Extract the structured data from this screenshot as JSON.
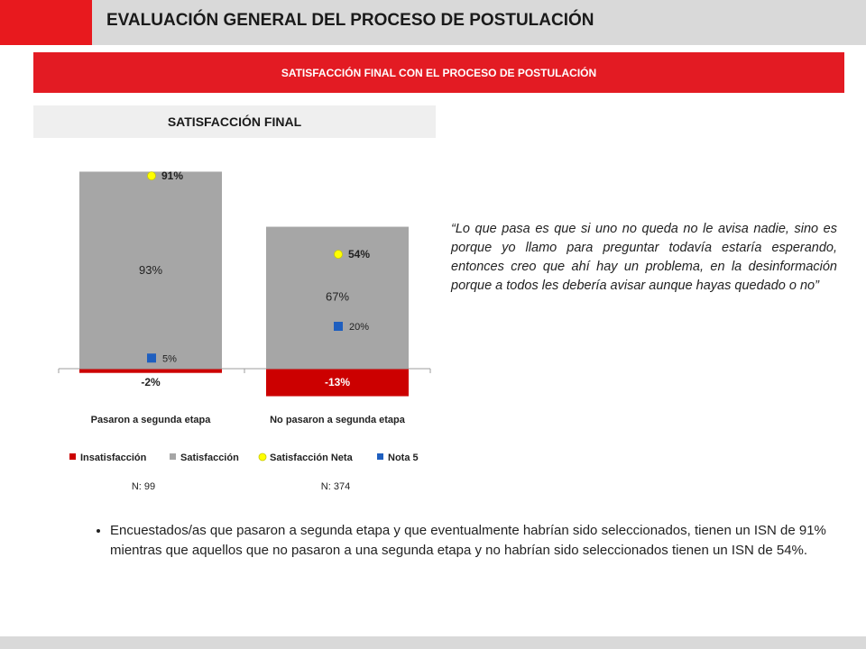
{
  "header": {
    "title": "EVALUACIÓN GENERAL DEL PROCESO DE POSTULACIÓN"
  },
  "section": {
    "title": "SATISFACCIÓN FINAL CON EL PROCESO DE POSTULACIÓN"
  },
  "subsection": {
    "title": "SATISFACCIÓN FINAL"
  },
  "chart_data": {
    "type": "bar",
    "categories": [
      "Pasaron a segunda etapa",
      "No pasaron a segunda etapa"
    ],
    "series": [
      {
        "name": "Insatisfacción",
        "values": [
          -2,
          -13
        ],
        "labels": [
          "-2%",
          "-13%"
        ],
        "color": "#cc0000"
      },
      {
        "name": "Satisfacción",
        "values": [
          93,
          67
        ],
        "labels": [
          "93%",
          "67%"
        ],
        "color": "#a6a6a6"
      },
      {
        "name": "Satisfacción Neta",
        "values": [
          91,
          54
        ],
        "labels": [
          "91%",
          "54%"
        ],
        "color": "#ffff00"
      },
      {
        "name": "Nota 5",
        "values": [
          5,
          20
        ],
        "labels": [
          "5%",
          "20%"
        ],
        "color": "#1f5fbf"
      }
    ],
    "sample_sizes": [
      "N: 99",
      "N: 374"
    ],
    "legend_position": "bottom",
    "grid": false
  },
  "quote": "“Lo que pasa es que si uno no queda no le avisa nadie, sino es porque yo llamo para preguntar todavía estaría esperando, entonces creo que ahí hay un problema, en la desinformación porque a todos les debería avisar aunque hayas quedado o no”",
  "note": "Encuestados/as que pasaron a segunda etapa y que eventualmente habrían sido seleccionados, tienen un ISN de 91% mientras que aquellos que no pasaron a una segunda etapa y no habrían sido seleccionados tienen un ISN de 54%."
}
